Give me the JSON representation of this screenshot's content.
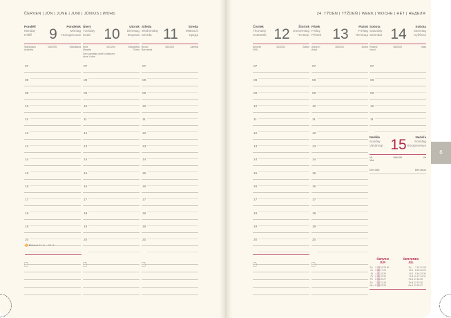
{
  "header_left": "ČERVEN | JÚN | JUNE | JUNI | JÚNIUS | ИЮНЬ",
  "header_right": "24. TÝDEN | TÝŽDEŇ | WEEK | WOCHE | HÉT | НЕДЕЛЯ",
  "hours": [
    "07",
    "08",
    "09",
    "10",
    "11",
    "12",
    "13",
    "14",
    "15",
    "16",
    "17",
    "18",
    "19",
    "20"
  ],
  "days": [
    {
      "num": "9",
      "l": [
        "Pondělí",
        "Monday",
        "Hétfő"
      ],
      "r": [
        "Pondelok",
        "Montag",
        "Понедельник"
      ],
      "n1": "Stanislava",
      "n2": "Anabela",
      "count": "160/205",
      "sk": "Stanislava",
      "note": ""
    },
    {
      "num": "10",
      "l": [
        "Úterý",
        "Tuesday",
        "Kedd"
      ],
      "r": [
        "Utorok",
        "Dienstag",
        "Вторник"
      ],
      "n1": "Ema",
      "n2": "Margita",
      "count": "161/204",
      "sk": "Margaréta Gréta",
      "note": "Den památky obětí vyhlazení obce Lidice"
    },
    {
      "num": "11",
      "l": [
        "Středa",
        "Wednesday",
        "Szerda"
      ],
      "r": [
        "Streda",
        "Mittwoch",
        "Среда"
      ],
      "n1": "Bruno",
      "n2": "Barnabás",
      "count": "162/203",
      "sk": "Jarmila",
      "note": ""
    },
    {
      "num": "12",
      "l": [
        "Čtvrtek",
        "Thursday",
        "Csütörtök"
      ],
      "r": [
        "Štvrtok",
        "Donnerstag",
        "Четверг"
      ],
      "n1": "Antonie",
      "n2": "Villő",
      "count": "163/202",
      "sk": "Zlatko",
      "note": ""
    },
    {
      "num": "13",
      "l": [
        "Pátek",
        "Friday",
        "Péntek"
      ],
      "r": [
        "Piatok",
        "Freitag",
        "Пятница"
      ],
      "n1": "Antonín",
      "n2": "Antal",
      "count": "164/201",
      "sk": "Anton",
      "note": ""
    },
    {
      "num": "14",
      "l": [
        "Sobota",
        "Saturday",
        "Szombat"
      ],
      "r": [
        "Sobota",
        "Samstag",
        "Суббота"
      ],
      "n1": "Roland",
      "n2": "Vazul",
      "count": "165/200",
      "sk": "Vasil",
      "note": ""
    }
  ],
  "sunday": {
    "num": "15",
    "l": [
      "Neděle",
      "Sunday",
      "Vasárnap"
    ],
    "r": [
      "Nedeľa",
      "Sonntag",
      "Воскресенье"
    ],
    "n1": "Vít",
    "n2": "Vita",
    "count": "166/199",
    "sk": "Vít",
    "cz_holiday": "Den otců",
    "sk_holiday": "Deň otcov"
  },
  "zodiac": "Blíženci 21. 5. – 21. 6.",
  "tab": "6",
  "mini_cal": {
    "june": "ČERVEN",
    "june_sk": "JÚN",
    "july": "ČERVENEC",
    "july_sk": "JÚL"
  },
  "colors": {
    "accent": "#b0234f",
    "paper": "#fcf8ee"
  }
}
